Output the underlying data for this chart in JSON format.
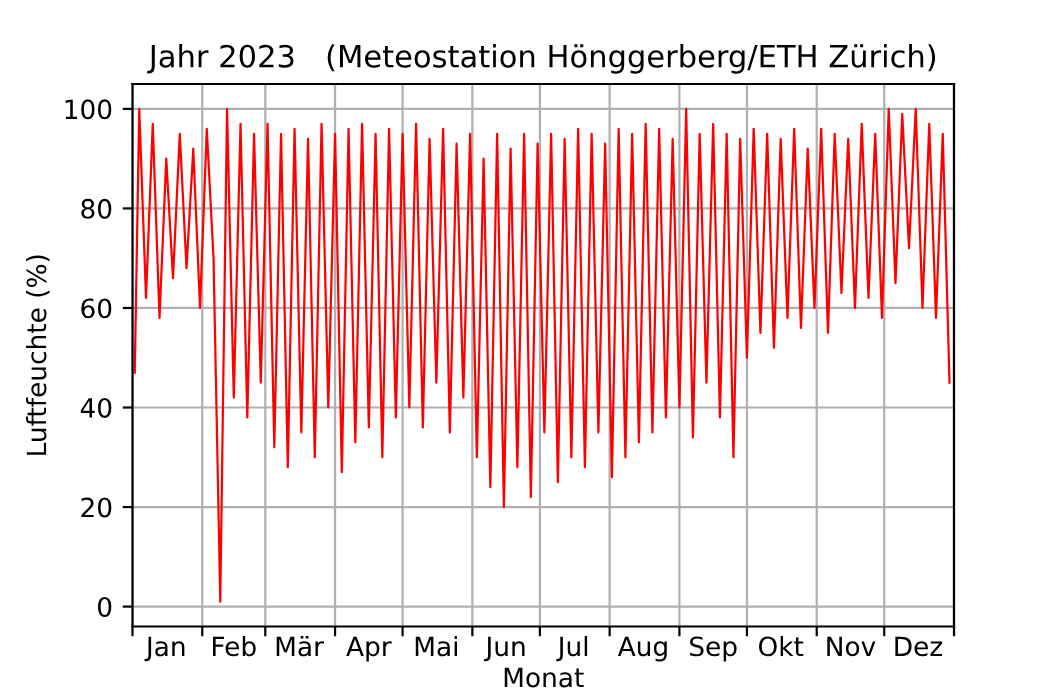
{
  "chart_data": {
    "type": "line",
    "title": "Jahr 2023   (Meteostation Hönggerberg/ETH Zürich)",
    "xlabel": "Monat",
    "ylabel": "Luftfeuchte (%)",
    "x": [
      "2023-01-02",
      "2023-01-04",
      "2023-01-07",
      "2023-01-10",
      "2023-01-13",
      "2023-01-16",
      "2023-01-19",
      "2023-01-22",
      "2023-01-25",
      "2023-01-28",
      "2023-01-31",
      "2023-02-03",
      "2023-02-06",
      "2023-02-09",
      "2023-02-12",
      "2023-02-15",
      "2023-02-18",
      "2023-02-21",
      "2023-02-24",
      "2023-02-27",
      "2023-03-02",
      "2023-03-05",
      "2023-03-08",
      "2023-03-11",
      "2023-03-14",
      "2023-03-17",
      "2023-03-20",
      "2023-03-23",
      "2023-03-26",
      "2023-03-29",
      "2023-04-01",
      "2023-04-04",
      "2023-04-07",
      "2023-04-10",
      "2023-04-13",
      "2023-04-16",
      "2023-04-19",
      "2023-04-22",
      "2023-04-25",
      "2023-04-28",
      "2023-05-01",
      "2023-05-04",
      "2023-05-07",
      "2023-05-10",
      "2023-05-13",
      "2023-05-16",
      "2023-05-19",
      "2023-05-22",
      "2023-05-25",
      "2023-05-28",
      "2023-05-31",
      "2023-06-03",
      "2023-06-06",
      "2023-06-09",
      "2023-06-12",
      "2023-06-15",
      "2023-06-18",
      "2023-06-21",
      "2023-06-24",
      "2023-06-27",
      "2023-06-30",
      "2023-07-03",
      "2023-07-06",
      "2023-07-09",
      "2023-07-12",
      "2023-07-15",
      "2023-07-18",
      "2023-07-21",
      "2023-07-24",
      "2023-07-27",
      "2023-07-30",
      "2023-08-02",
      "2023-08-05",
      "2023-08-08",
      "2023-08-11",
      "2023-08-14",
      "2023-08-17",
      "2023-08-20",
      "2023-08-23",
      "2023-08-26",
      "2023-08-29",
      "2023-09-01",
      "2023-09-04",
      "2023-09-07",
      "2023-09-10",
      "2023-09-13",
      "2023-09-16",
      "2023-09-19",
      "2023-09-22",
      "2023-09-25",
      "2023-09-28",
      "2023-10-01",
      "2023-10-04",
      "2023-10-07",
      "2023-10-10",
      "2023-10-13",
      "2023-10-16",
      "2023-10-19",
      "2023-10-22",
      "2023-10-25",
      "2023-10-28",
      "2023-10-31",
      "2023-11-03",
      "2023-11-06",
      "2023-11-09",
      "2023-11-12",
      "2023-11-15",
      "2023-11-18",
      "2023-11-21",
      "2023-11-24",
      "2023-11-27",
      "2023-11-30",
      "2023-12-03",
      "2023-12-06",
      "2023-12-09",
      "2023-12-12",
      "2023-12-15",
      "2023-12-18",
      "2023-12-21",
      "2023-12-24",
      "2023-12-27",
      "2023-12-30"
    ],
    "series": [
      {
        "color": "#ff0000",
        "values": [
          47,
          100,
          62,
          97,
          58,
          90,
          66,
          95,
          68,
          92,
          60,
          96,
          70,
          1,
          100,
          42,
          97,
          38,
          95,
          45,
          97,
          32,
          95,
          28,
          96,
          35,
          94,
          30,
          97,
          40,
          95,
          27,
          96,
          33,
          97,
          36,
          95,
          30,
          96,
          38,
          95,
          40,
          97,
          36,
          94,
          45,
          96,
          35,
          93,
          42,
          95,
          30,
          90,
          24,
          95,
          20,
          92,
          28,
          95,
          22,
          93,
          35,
          95,
          25,
          94,
          30,
          96,
          28,
          95,
          35,
          93,
          26,
          96,
          30,
          95,
          33,
          97,
          35,
          96,
          38,
          94,
          40,
          100,
          34,
          95,
          45,
          97,
          38,
          95,
          30,
          94,
          50,
          96,
          55,
          95,
          52,
          94,
          58,
          96,
          56,
          92,
          60,
          96,
          55,
          95,
          63,
          94,
          60,
          97,
          62,
          95,
          58,
          100,
          65,
          99,
          72,
          100,
          60,
          97,
          58,
          95,
          45
        ]
      }
    ],
    "xlim": [
      "2023-01-01",
      "2024-01-01"
    ],
    "xticks": [
      {
        "value": "2023-01-01",
        "label": null
      },
      {
        "value": "2023-02-01",
        "label": null
      },
      {
        "value": "2023-03-01",
        "label": null
      },
      {
        "value": "2023-04-01",
        "label": null
      },
      {
        "value": "2023-05-01",
        "label": null
      },
      {
        "value": "2023-06-01",
        "label": null
      },
      {
        "value": "2023-07-01",
        "label": null
      },
      {
        "value": "2023-08-01",
        "label": null
      },
      {
        "value": "2023-09-01",
        "label": null
      },
      {
        "value": "2023-10-01",
        "label": null
      },
      {
        "value": "2023-11-01",
        "label": null
      },
      {
        "value": "2023-12-01",
        "label": null
      },
      {
        "value": "2024-01-01",
        "label": null
      },
      {
        "value": "2023-01-16",
        "label": "Jan"
      },
      {
        "value": "2023-02-15",
        "label": "Feb"
      },
      {
        "value": "2023-03-16",
        "label": "Mär"
      },
      {
        "value": "2023-04-16",
        "label": "Apr"
      },
      {
        "value": "2023-05-16",
        "label": "Mai"
      },
      {
        "value": "2023-06-16",
        "label": "Jun"
      },
      {
        "value": "2023-07-16",
        "label": "Jul"
      },
      {
        "value": "2023-08-16",
        "label": "Aug"
      },
      {
        "value": "2023-09-16",
        "label": "Sep"
      },
      {
        "value": "2023-10-16",
        "label": "Okt"
      },
      {
        "value": "2023-11-16",
        "label": "Nov"
      },
      {
        "value": "2023-12-16",
        "label": "Dez"
      }
    ],
    "ylim": [
      -4,
      105
    ],
    "yticks": [
      0,
      20,
      40,
      60,
      80,
      100
    ],
    "grid": true,
    "line_style": "solid"
  }
}
